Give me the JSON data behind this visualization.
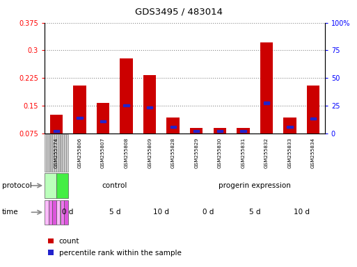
{
  "title": "GDS3495 / 483014",
  "samples": [
    "GSM255774",
    "GSM255806",
    "GSM255807",
    "GSM255808",
    "GSM255809",
    "GSM255828",
    "GSM255829",
    "GSM255830",
    "GSM255831",
    "GSM255832",
    "GSM255833",
    "GSM255834"
  ],
  "count_values": [
    0.125,
    0.205,
    0.158,
    0.278,
    0.233,
    0.118,
    0.09,
    0.09,
    0.09,
    0.322,
    0.118,
    0.205
  ],
  "percentile_values": [
    0.082,
    0.118,
    0.108,
    0.152,
    0.145,
    0.093,
    0.082,
    0.082,
    0.082,
    0.158,
    0.093,
    0.115
  ],
  "ylim_left": [
    0.075,
    0.375
  ],
  "ylim_right": [
    0,
    100
  ],
  "yticks_left": [
    0.075,
    0.15,
    0.225,
    0.3,
    0.375
  ],
  "ytick_labels_left": [
    "0.075",
    "0.15",
    "0.225",
    "0.3",
    "0.375"
  ],
  "yticks_right": [
    0,
    25,
    50,
    75,
    100
  ],
  "ytick_labels_right": [
    "0",
    "25",
    "50",
    "75",
    "100%"
  ],
  "protocol_groups": [
    {
      "label": "control",
      "start": 0,
      "end": 5,
      "color": "#bbffbb"
    },
    {
      "label": "progerin expression",
      "start": 6,
      "end": 11,
      "color": "#44ee44"
    }
  ],
  "time_groups": [
    {
      "label": "0 d",
      "start": 0,
      "end": 1,
      "color": "#ffbbff"
    },
    {
      "label": "5 d",
      "start": 2,
      "end": 3,
      "color": "#ee77ee"
    },
    {
      "label": "10 d",
      "start": 4,
      "end": 5,
      "color": "#dd55dd"
    },
    {
      "label": "0 d",
      "start": 6,
      "end": 7,
      "color": "#ffbbff"
    },
    {
      "label": "5 d",
      "start": 8,
      "end": 9,
      "color": "#ee77ee"
    },
    {
      "label": "10 d",
      "start": 10,
      "end": 11,
      "color": "#dd55dd"
    }
  ],
  "bar_color": "#cc0000",
  "percentile_color": "#2222cc",
  "bar_width": 0.55,
  "grid_color": "#888888",
  "bg_color": "#ffffff",
  "sample_bg": "#cccccc",
  "legend_count_label": "count",
  "legend_percentile_label": "percentile rank within the sample",
  "protocol_label": "protocol",
  "time_label": "time"
}
